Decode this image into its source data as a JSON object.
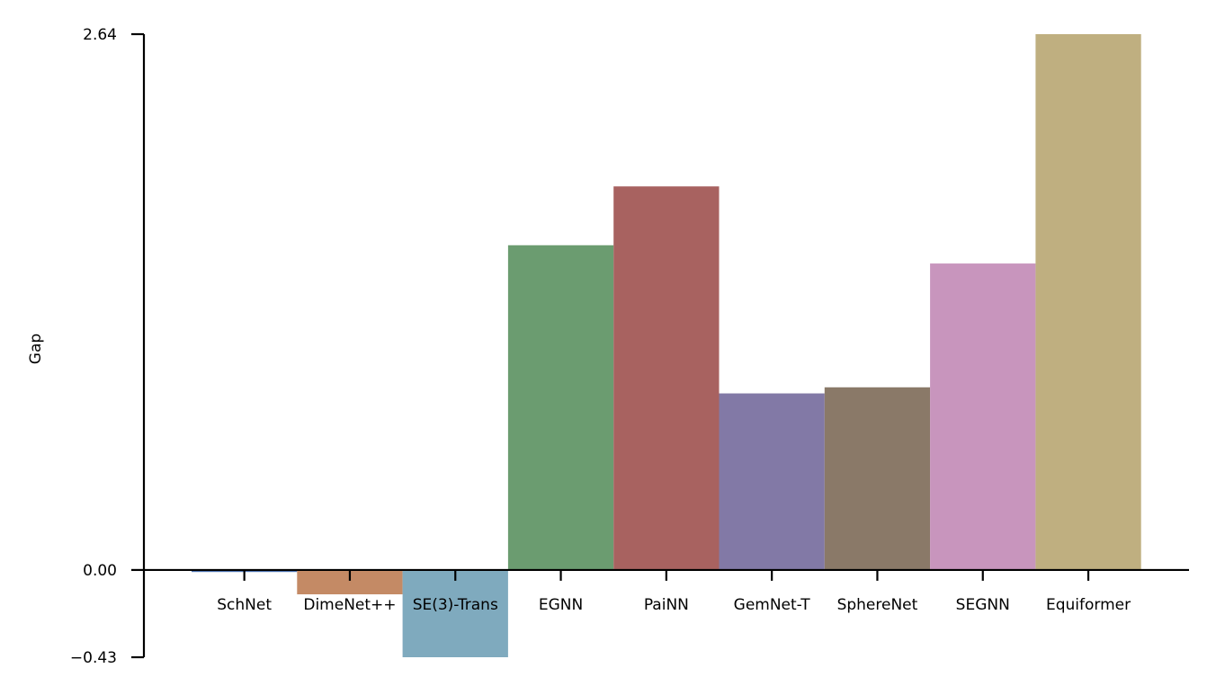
{
  "chart_data": {
    "type": "bar",
    "title": "",
    "xlabel": "",
    "ylabel": "Gap",
    "ylim": [
      -0.43,
      2.64
    ],
    "yticks": [
      {
        "value": -0.43,
        "label": "−0.43"
      },
      {
        "value": 0.0,
        "label": "0.00"
      },
      {
        "value": 2.64,
        "label": "2.64"
      }
    ],
    "grid": false,
    "legend": "none",
    "categories": [
      "SchNet",
      "DimeNet++",
      "SE(3)-Trans",
      "EGNN",
      "PaiNN",
      "GemNet-T",
      "SphereNet",
      "SEGNN",
      "Equiformer"
    ],
    "values": [
      -0.01,
      -0.12,
      -0.43,
      1.6,
      1.89,
      0.87,
      0.9,
      1.51,
      2.64
    ],
    "colors": [
      "#4c72b0",
      "#c48a65",
      "#7faabe",
      "#6b9c70",
      "#a86260",
      "#8279a6",
      "#8a7968",
      "#c895bd",
      "#bfaf80"
    ]
  }
}
